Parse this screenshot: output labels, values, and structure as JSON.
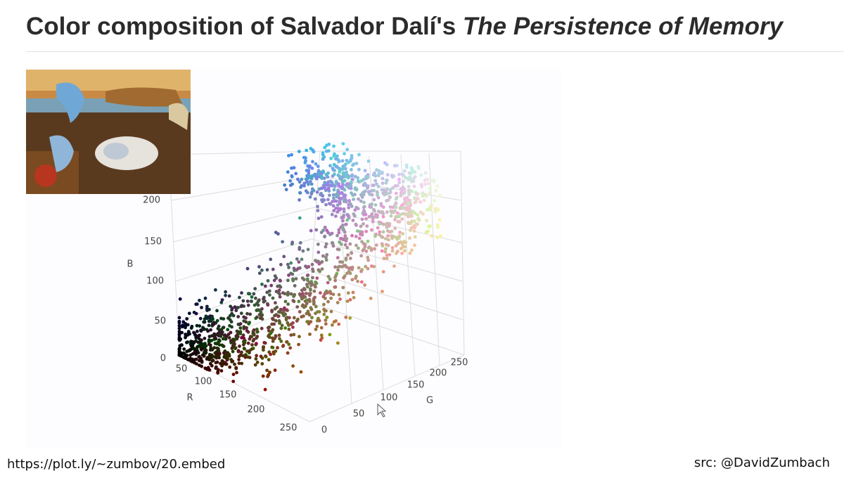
{
  "header": {
    "title": "Color composition of Salvador Dalí's",
    "title_emphasis": "The Persistence of Memory"
  },
  "plot": {
    "b_axis": {
      "label": "B",
      "ticks": [
        0,
        50,
        100,
        150,
        200
      ]
    },
    "r_axis": {
      "label": "R",
      "ticks": [
        50,
        100,
        150,
        200,
        250
      ]
    },
    "g_axis": {
      "label": "G",
      "ticks": [
        0,
        50,
        100,
        150,
        200,
        250
      ]
    }
  },
  "footer": {
    "link": "https://plot.ly/~zumbov/20.embed",
    "credit": "src: @DavidZumbach"
  }
}
